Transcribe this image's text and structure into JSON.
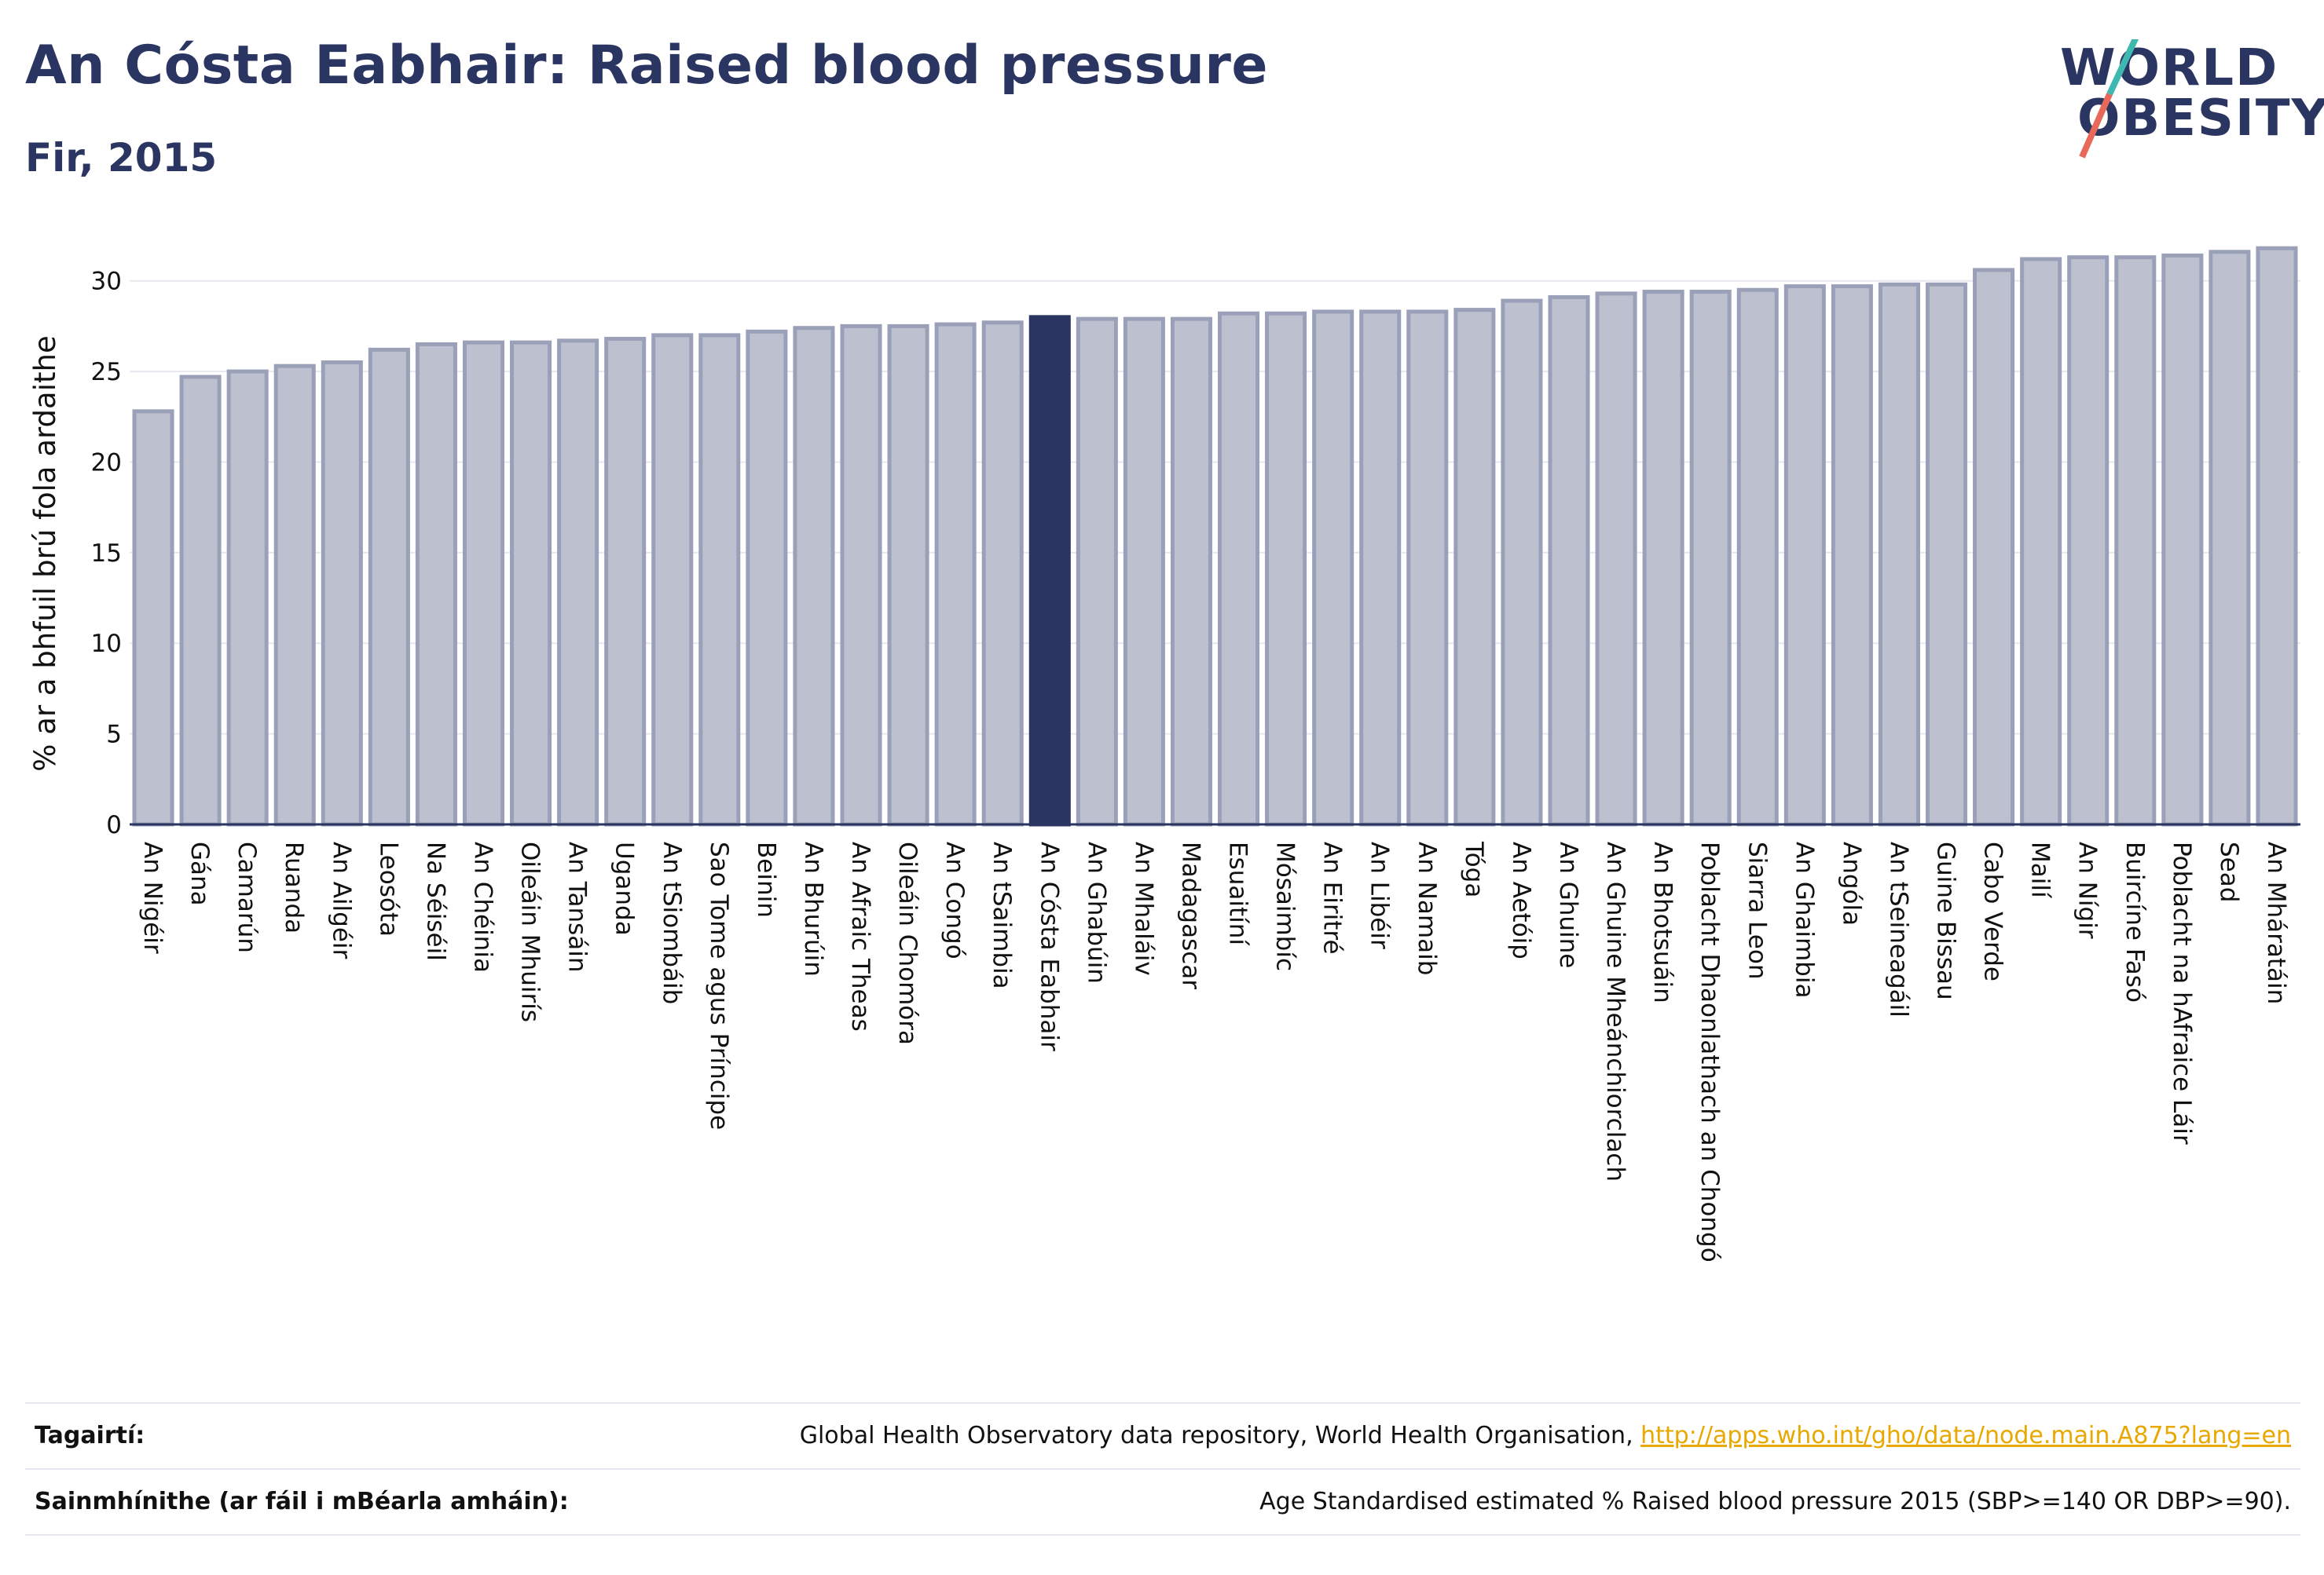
{
  "header": {
    "title": "An Cósta Eabhair: Raised blood pressure",
    "subtitle": "Fir, 2015"
  },
  "logo": {
    "line1": "WORLD",
    "line2": "OBESITY"
  },
  "colors": {
    "highlight": "#2b3561",
    "bar": "#bcc0cf",
    "bar_stroke": "#9aa0b8",
    "link": "#e8a800"
  },
  "chart_data": {
    "type": "bar",
    "ylabel": "% ar a bhfuil brú fola ardaithe",
    "ylim": [
      0,
      32.5
    ],
    "yticks": [
      0,
      5,
      10,
      15,
      20,
      25,
      30
    ],
    "highlight": "An Cósta Eabhair",
    "categories": [
      "An Nigéir",
      "Gána",
      "Camarún",
      "Ruanda",
      "An Ailgéir",
      "Leosóta",
      "Na Séiséil",
      "An Chéinia",
      "Oileáin Mhuirís",
      "An Tansáin",
      "Uganda",
      "An tSiombáib",
      "Sao Tome agus Príncipe",
      "Beinin",
      "An Bhurúin",
      "An Afraic Theas",
      "Oileáin Chomóra",
      "An Congó",
      "An tSaimbia",
      "An Cósta Eabhair",
      "An Ghabúin",
      "An Mhaláiv",
      "Madagascar",
      "Esuaitíní",
      "Mósaimbíc",
      "An Eiritré",
      "An Libéir",
      "An Namaib",
      "Tóga",
      "An Aetóip",
      "An Ghuine",
      "An Ghuine Mheánchiorclach",
      "An Bhotsuáin",
      "Poblacht Dhaonlathach an Chongó",
      "Siarra Leon",
      "An Ghaimbia",
      "Angóla",
      "An tSeineagáil",
      "Guine Bissau",
      "Cabo Verde",
      "Mailí",
      "An Nígir",
      "Buircíne Fasó",
      "Poblacht na hAfraice Láir",
      "Sead",
      "An Mháratáin"
    ],
    "values": [
      22.8,
      24.7,
      25.0,
      25.3,
      25.5,
      26.2,
      26.5,
      26.6,
      26.6,
      26.7,
      26.8,
      27.0,
      27.0,
      27.2,
      27.4,
      27.5,
      27.5,
      27.6,
      27.7,
      28.0,
      27.9,
      27.9,
      27.9,
      28.2,
      28.2,
      28.3,
      28.3,
      28.3,
      28.4,
      28.9,
      29.1,
      29.3,
      29.4,
      29.4,
      29.5,
      29.7,
      29.7,
      29.8,
      29.8,
      30.6,
      31.2,
      31.3,
      31.3,
      31.4,
      31.6,
      31.8
    ]
  },
  "footer": {
    "references_label": "Tagairtí:",
    "references_text": "Global Health Observatory data repository, World Health Organisation, ",
    "references_link": "http://apps.who.int/gho/data/node.main.A875?lang=en",
    "definitions_label": "Sainmhínithe (ar fáil i mBéarla amháin):",
    "definitions_text": "Age Standardised estimated % Raised blood pressure 2015 (SBP>=140 OR DBP>=90)."
  }
}
